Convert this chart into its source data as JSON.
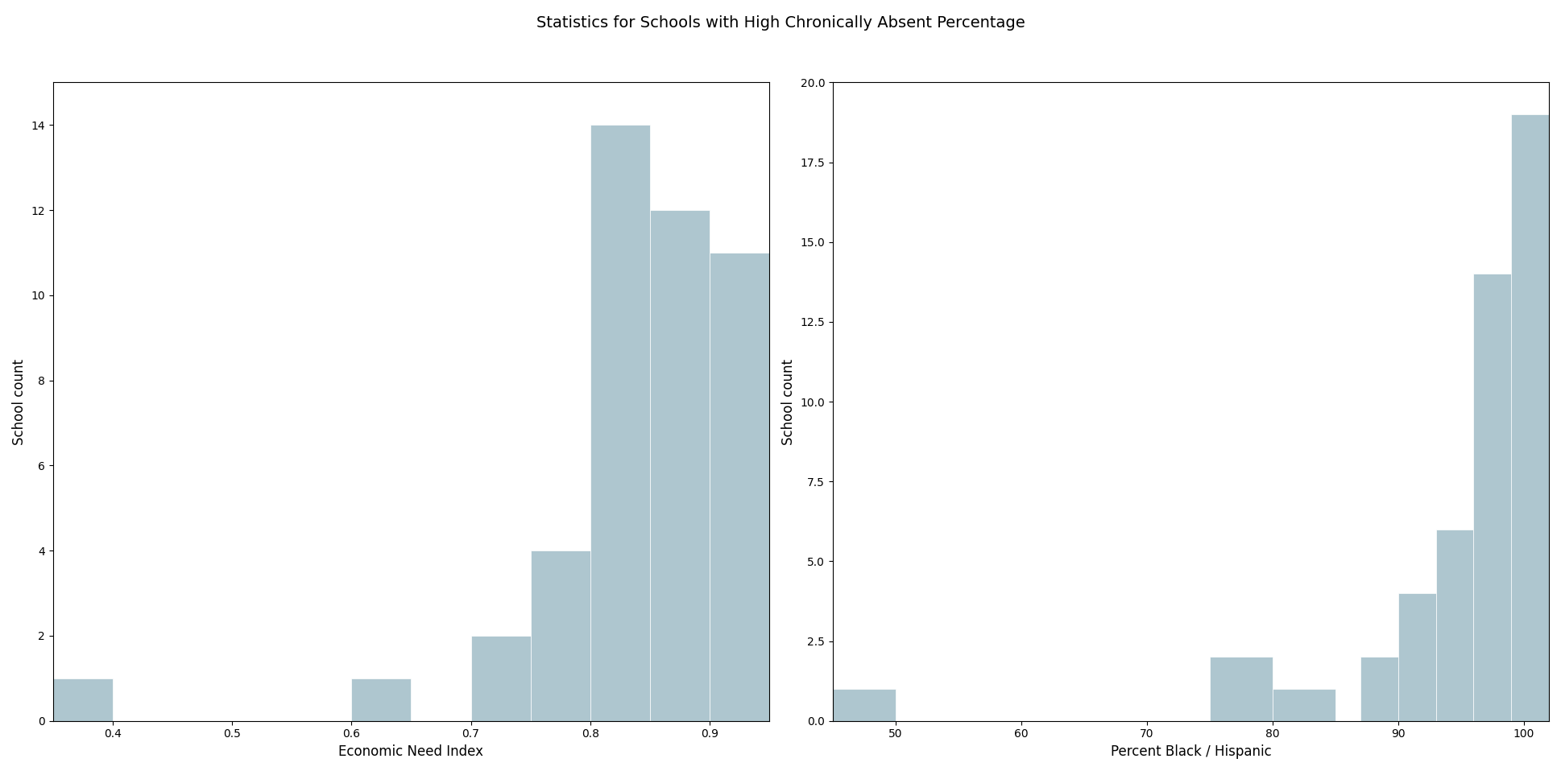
{
  "title": "Statistics for Schools with High Chronically Absent Percentage",
  "title_fontsize": 14,
  "left": {
    "xlabel": "Economic Need Index",
    "ylabel": "School count",
    "bar_color": "#aec6cf",
    "bin_edges": [
      0.35,
      0.4,
      0.45,
      0.5,
      0.55,
      0.6,
      0.65,
      0.7,
      0.75,
      0.8,
      0.85,
      0.9,
      0.95
    ],
    "counts": [
      1,
      0,
      0,
      0,
      0,
      1,
      0,
      2,
      4,
      14,
      12,
      11
    ]
  },
  "right": {
    "xlabel": "Percent Black / Hispanic",
    "ylabel": "School count",
    "bar_color": "#aec6cf",
    "bin_edges": [
      45,
      50,
      55,
      60,
      65,
      70,
      75,
      80,
      85,
      87,
      90,
      93,
      96,
      99,
      102
    ],
    "counts": [
      1,
      0,
      0,
      0,
      0,
      0,
      2,
      1,
      0,
      2,
      4,
      6,
      14,
      19
    ]
  }
}
